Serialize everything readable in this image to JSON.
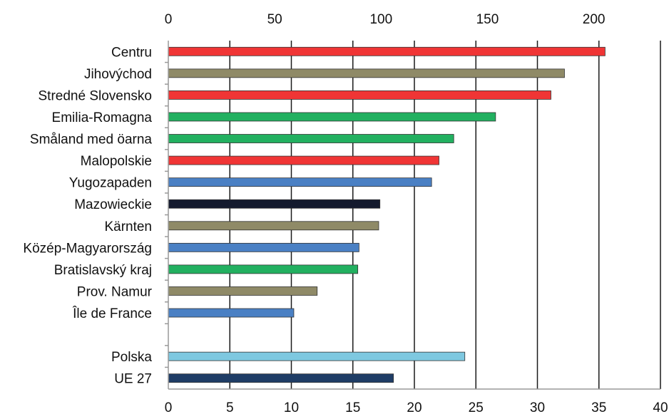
{
  "chart_data": {
    "type": "bar",
    "orientation": "horizontal",
    "categories": [
      "Centru",
      "Jihovýchod",
      "Stredné Slovensko",
      "Emilia-Romagna",
      "Småland med öarna",
      "Malopolskie",
      "Yugozapaden",
      "Mazowieckie",
      "Kärnten",
      "Közép-Magyarország",
      "Bratislavský kraj",
      "Prov. Namur",
      "Île de France",
      "",
      "Polska",
      "UE 27"
    ],
    "values": [
      35.5,
      32.2,
      31.1,
      26.6,
      23.2,
      22.0,
      21.4,
      17.2,
      17.1,
      15.5,
      15.4,
      12.1,
      10.2,
      null,
      24.1,
      18.3
    ],
    "colors": [
      "#f03535",
      "#8f8a67",
      "#f03535",
      "#22b060",
      "#22b060",
      "#f03535",
      "#4a80c4",
      "#141a2e",
      "#8f8a67",
      "#4a80c4",
      "#22b060",
      "#8f8a67",
      "#4a80c4",
      "",
      "#7ec8e0",
      "#1f3d66"
    ],
    "xlim": [
      0,
      40
    ],
    "bottom_ticks": [
      "0",
      "5",
      "10",
      "15",
      "20",
      "25",
      "30",
      "35",
      "40"
    ],
    "top_axis_lim": [
      0,
      231.3
    ],
    "top_ticks": [
      "0",
      "50",
      "100",
      "150",
      "200"
    ],
    "grid": "vertical",
    "xlabel": "",
    "ylabel": "",
    "title": ""
  }
}
